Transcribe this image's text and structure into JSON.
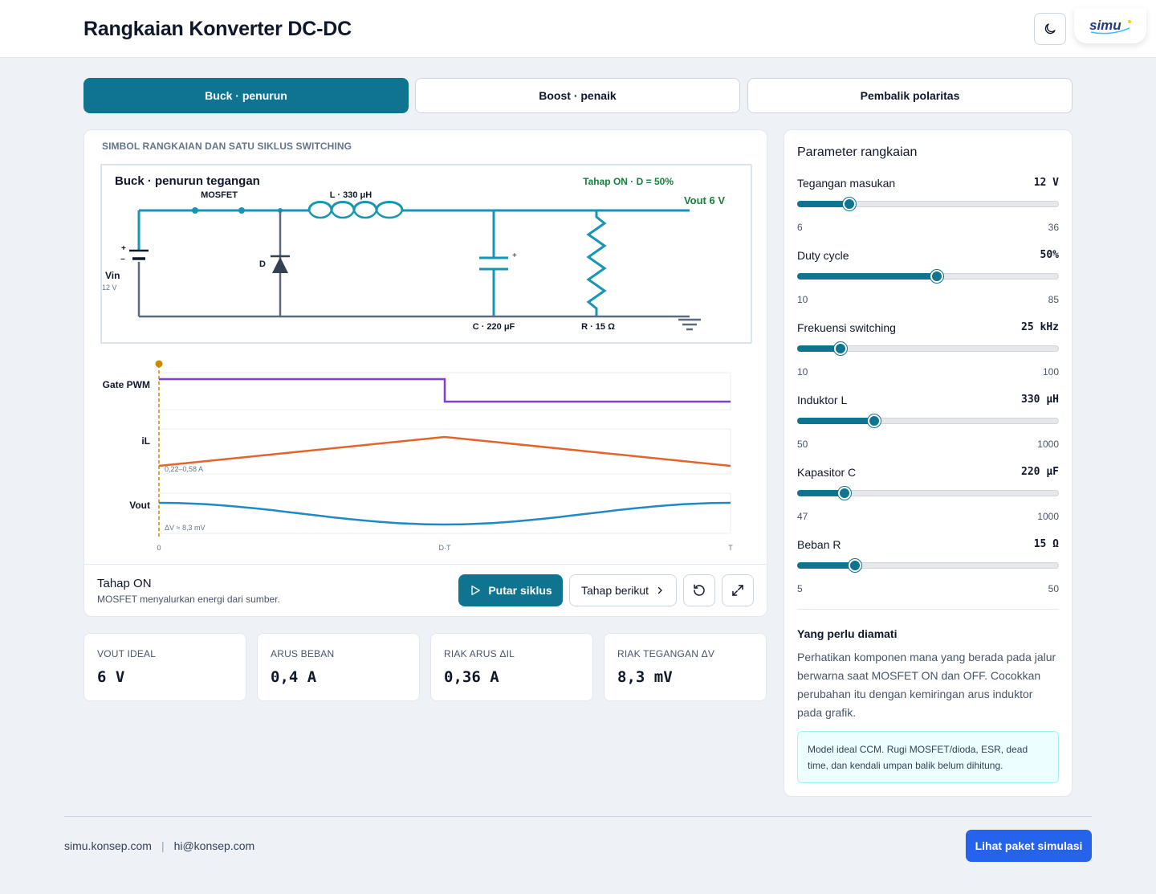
{
  "header": {
    "title": "Rangkaian Konverter DC-DC",
    "logo_text": "simu"
  },
  "tabs": [
    {
      "label": "Buck · penurun",
      "active": true
    },
    {
      "label": "Boost · penaik",
      "active": false
    },
    {
      "label": "Pembalik polaritas",
      "active": false
    }
  ],
  "circuit_panel": {
    "section_label": "SIMBOL RANGKAIAN DAN SATU SIKLUS SWITCHING",
    "diagram_title": "Buck · penurun tegangan",
    "phase_label": "Tahap ON · D = 50%",
    "vout_label": "Vout  6  V",
    "mosfet_label": "MOSFET",
    "inductor_label": "L · 330 μH",
    "diode_label": "D",
    "capacitor_label": "C · 220 μF",
    "resistor_label": "R · 15 Ω",
    "vin_label": "Vin",
    "vin_value": "12 V",
    "plus_sign": "+",
    "minus_sign": "−"
  },
  "waveforms": {
    "gate_label": "Gate PWM",
    "il_label": "iL",
    "il_annotation": "0,22–0,58 A",
    "vout_label": "Vout",
    "vout_annotation": "ΔV ≈ 8,3 mV",
    "axis_ticks": [
      "0",
      "D·T",
      "T"
    ]
  },
  "chart_data": {
    "type": "line",
    "x": [
      0,
      0.5,
      1.0
    ],
    "xticks": [
      "0",
      "D·T",
      "T"
    ],
    "series": [
      {
        "name": "Gate PWM",
        "values": [
          1,
          1,
          0
        ]
      },
      {
        "name": "iL",
        "values": [
          0.22,
          0.58,
          0.22
        ]
      },
      {
        "name": "Vout",
        "values": [
          6.0,
          5.9917,
          6.0
        ]
      }
    ],
    "duty_cycle": 0.5,
    "cursor_x": 0
  },
  "stage": {
    "title": "Tahap ON",
    "description": "MOSFET menyalurkan energi dari sumber."
  },
  "controls": {
    "play_label": "Putar siklus",
    "next_label": "Tahap berikut"
  },
  "stats": [
    {
      "label": "VOUT IDEAL",
      "value": "6 V"
    },
    {
      "label": "ARUS BEBAN",
      "value": "0,4 A"
    },
    {
      "label": "RIAK ARUS ΔIL",
      "value": "0,36 A"
    },
    {
      "label": "RIAK TEGANGAN ΔV",
      "value": "8,3 mV"
    }
  ],
  "params": {
    "title": "Parameter rangkaian",
    "items": [
      {
        "name": "Tegangan masukan",
        "value": "12  V",
        "min": "6",
        "max": "36",
        "fraction": 0.2
      },
      {
        "name": "Duty cycle",
        "value": "50%",
        "min": "10",
        "max": "85",
        "fraction": 0.533
      },
      {
        "name": "Frekuensi switching",
        "value": "25  kHz",
        "min": "10",
        "max": "100",
        "fraction": 0.167
      },
      {
        "name": "Induktor L",
        "value": "330  μH",
        "min": "50",
        "max": "1000",
        "fraction": 0.295
      },
      {
        "name": "Kapasitor C",
        "value": "220  μF",
        "min": "47",
        "max": "1000",
        "fraction": 0.182
      },
      {
        "name": "Beban R",
        "value": "15  Ω",
        "min": "5",
        "max": "50",
        "fraction": 0.222
      }
    ],
    "observe_title": "Yang perlu diamati",
    "observe_text": "Perhatikan komponen mana yang berada pada jalur berwarna saat MOSFET ON dan OFF. Cocokkan perubahan itu dengan kemiringan arus induktor pada grafik.",
    "note": "Model ideal CCM. Rugi MOSFET/dioda, ESR, dead time, dan kendali umpan balik belum dihitung."
  },
  "footer": {
    "site": "simu.konsep.com",
    "separator": "|",
    "email": "hi@konsep.com",
    "cta": "Lihat paket simulasi"
  },
  "colors": {
    "primary": "#0e7490",
    "wire_active": "#1596b4",
    "wire_idle": "#5b6b7c",
    "gate": "#7e3fd6",
    "il": "#e3642a",
    "vout_wave": "#1e88c8",
    "phase_green": "#15803d",
    "cursor": "#c98a00",
    "cta": "#2563eb"
  }
}
